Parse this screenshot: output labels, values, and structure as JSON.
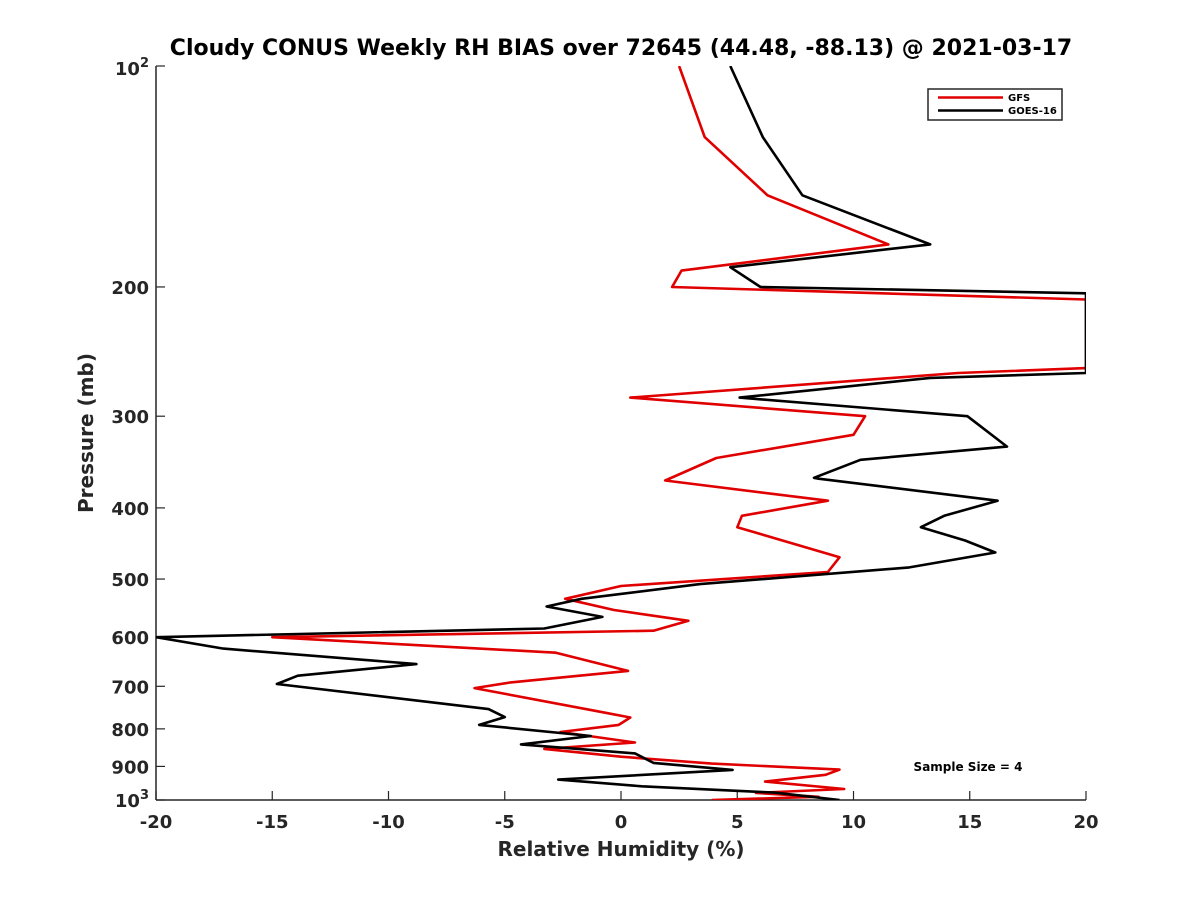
{
  "chart_data": {
    "type": "line",
    "title": "Cloudy CONUS Weekly RH BIAS over 72645 (44.48, -88.13) @ 2021-03-17",
    "xlabel": "Relative Humidity (%)",
    "ylabel": "Pressure (mb)",
    "xlim": [
      -20,
      20
    ],
    "ylim": [
      100,
      1000
    ],
    "y_scale": "log",
    "y_reversed": true,
    "x_ticks": [
      "-20",
      "-15",
      "-10",
      "-5",
      "0",
      "5",
      "10",
      "15",
      "20"
    ],
    "y_ticks": [
      {
        "value": 100,
        "base": "10",
        "exp": "2"
      },
      {
        "value": 200,
        "label": "200"
      },
      {
        "value": 300,
        "label": "300"
      },
      {
        "value": 400,
        "label": "400"
      },
      {
        "value": 500,
        "label": "500"
      },
      {
        "value": 600,
        "label": "600"
      },
      {
        "value": 700,
        "label": "700"
      },
      {
        "value": 800,
        "label": "800"
      },
      {
        "value": 900,
        "label": "900"
      },
      {
        "value": 1000,
        "base": "10",
        "exp": "3"
      }
    ],
    "legend_position": "top-right",
    "annotation": "Sample Size = 4",
    "grid": false,
    "series": [
      {
        "name": "GFS",
        "color": "#e00000",
        "points": [
          [
            2.5,
            100
          ],
          [
            3.6,
            125
          ],
          [
            6.3,
            150
          ],
          [
            11.5,
            175
          ],
          [
            2.6,
            190
          ],
          [
            2.2,
            200
          ],
          [
            20,
            208
          ],
          [
            20,
            258
          ],
          [
            14.5,
            262
          ],
          [
            0.4,
            283
          ],
          [
            10.5,
            300
          ],
          [
            10.0,
            318
          ],
          [
            4.1,
            342
          ],
          [
            1.9,
            367
          ],
          [
            8.9,
            391
          ],
          [
            5.2,
            410
          ],
          [
            5.0,
            425
          ],
          [
            9.4,
            467
          ],
          [
            8.9,
            489
          ],
          [
            0,
            511
          ],
          [
            -2.4,
            532
          ],
          [
            -0.3,
            551
          ],
          [
            2.9,
            570
          ],
          [
            1.4,
            588
          ],
          [
            -15.0,
            600
          ],
          [
            -2.8,
            630
          ],
          [
            0.3,
            667
          ],
          [
            -4.8,
            692
          ],
          [
            -6.3,
            704
          ],
          [
            -1.0,
            757
          ],
          [
            0.4,
            772
          ],
          [
            -0.1,
            790
          ],
          [
            -2.6,
            808
          ],
          [
            0.6,
            835
          ],
          [
            -3.3,
            852
          ],
          [
            0,
            873
          ],
          [
            3.9,
            892
          ],
          [
            9.4,
            909
          ],
          [
            8.8,
            924
          ],
          [
            6.2,
            944
          ],
          [
            9.6,
            966
          ],
          [
            5.8,
            978
          ],
          [
            8.5,
            990
          ],
          [
            3.9,
            1000
          ]
        ]
      },
      {
        "name": "GOES-16",
        "color": "#000000",
        "points": [
          [
            4.7,
            100
          ],
          [
            6.1,
            125
          ],
          [
            7.8,
            150
          ],
          [
            13.3,
            175
          ],
          [
            4.7,
            188
          ],
          [
            6.0,
            200
          ],
          [
            20,
            204
          ],
          [
            20,
            262
          ],
          [
            13.3,
            266
          ],
          [
            5.1,
            283
          ],
          [
            14.9,
            300
          ],
          [
            16.6,
            330
          ],
          [
            10.3,
            344
          ],
          [
            8.3,
            364
          ],
          [
            8.5,
            365
          ],
          [
            16.2,
            391
          ],
          [
            13.9,
            410
          ],
          [
            12.9,
            425
          ],
          [
            14.8,
            443
          ],
          [
            16.1,
            460
          ],
          [
            12.4,
            482
          ],
          [
            3.4,
            508
          ],
          [
            -1.7,
            532
          ],
          [
            -3.2,
            545
          ],
          [
            -0.8,
            563
          ],
          [
            -3.3,
            584
          ],
          [
            -20.0,
            600
          ],
          [
            -17.1,
            622
          ],
          [
            -8.8,
            653
          ],
          [
            -13.9,
            677
          ],
          [
            -14.8,
            695
          ],
          [
            -5.7,
            752
          ],
          [
            -5.0,
            771
          ],
          [
            -6.1,
            790
          ],
          [
            -1.3,
            818
          ],
          [
            -4.3,
            840
          ],
          [
            0.6,
            864
          ],
          [
            1.4,
            890
          ],
          [
            4.8,
            910
          ],
          [
            -2.7,
            938
          ],
          [
            0.9,
            958
          ],
          [
            6.6,
            977
          ],
          [
            9.4,
            1000
          ]
        ]
      }
    ]
  }
}
